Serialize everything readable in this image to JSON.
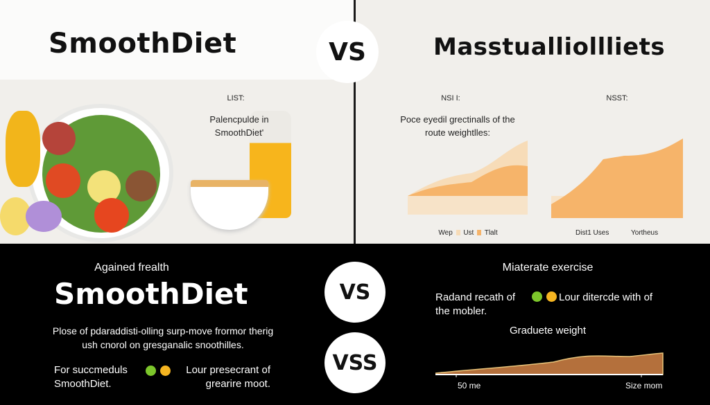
{
  "top": {
    "left_title": "SmoothDiet",
    "vs_label": "VS",
    "right_title": "Masstualliollliets",
    "list_heading": "LIST:",
    "list_caption": "Palencpulde in SmoothDiet'",
    "chart1": {
      "heading": "NSI I:",
      "caption": "Poce eyedil grectinalls of the route weightlles:",
      "legend": [
        "Wep",
        "Ust",
        "Tlalt"
      ],
      "colors": [
        "#f7dcb8",
        "#f6b46a"
      ]
    },
    "chart2": {
      "heading": "NSST:",
      "labels": [
        "Dist1 Uses",
        "Yortheus"
      ],
      "color": "#f6b46a"
    }
  },
  "bottom": {
    "subtitle": "Agained frealth",
    "title": "SmoothDiet",
    "description": "Plose of pdaraddisti-olling surp-move frormor therig ush cnorol on gresganalic snoothilles.",
    "legend_left": "For succmeduls SmoothDiet.",
    "legend_right": "Lour presecrant of grearire moot.",
    "vs_top": "VS",
    "vs_bottom": "VSS",
    "right_heading": "Miaterate exercise",
    "right_text_left": "Radand recath of the mobler.",
    "right_text_right": "Lour ditercde with of",
    "chart_title": "Graduete weight",
    "axis_labels": [
      "50 me",
      "Size mom"
    ],
    "dot_colors": [
      "#7cc62b",
      "#f5b521"
    ],
    "chart_color": "#b4703c"
  }
}
